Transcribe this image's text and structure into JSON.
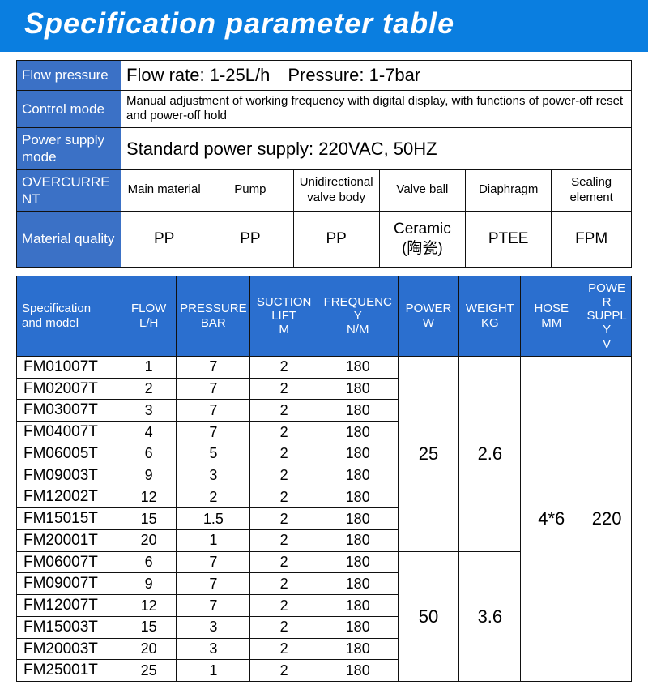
{
  "colors": {
    "header_blue": "#0a7ee0",
    "label_blue": "#3b71c6",
    "spec_header_blue": "#2b6fcf",
    "border": "#111111",
    "text": "#111111",
    "white": "#ffffff"
  },
  "typography": {
    "title_size": 36,
    "big_text_size": 22,
    "body_size": 17,
    "small_size": 15,
    "model_size": 19
  },
  "title": "Specification parameter table",
  "info": {
    "rows": [
      {
        "label": "Flow pressure",
        "value": "Flow rate: 1-25L/h Pressure: 1-7bar",
        "big": true
      },
      {
        "label": "Control mode",
        "value": "Manual adjustment of working frequency with digital display, with functions of power-off reset and power-off hold",
        "big": false
      },
      {
        "label": "Power supply mode",
        "value": "Standard power supply: 220VAC, 50HZ",
        "big": true
      }
    ],
    "overcurrent": {
      "label": "OVERCURRENT",
      "headers": [
        "Main material",
        "Pump",
        "Unidirectional valve body",
        "Valve ball",
        "Diaphragm",
        "Sealing element"
      ]
    },
    "material": {
      "label": "Material quality",
      "values": [
        "PP",
        "PP",
        "PP",
        "Ceramic\n(陶瓷)",
        "PTEE",
        "FPM"
      ]
    }
  },
  "col_widths_info": [
    "17%",
    "14%",
    "14%",
    "14%",
    "14%",
    "14%",
    "13%"
  ],
  "spec": {
    "headers": [
      {
        "line1": "Specification",
        "line2": "and model"
      },
      {
        "line1": "FLOW",
        "line2": "L/H"
      },
      {
        "line1": "PRESSURE",
        "line2": "BAR"
      },
      {
        "line1": "SUCTION",
        "line2": "LIFT",
        "line3": "M"
      },
      {
        "line1": "FREQUENCY",
        "line2": "N/M"
      },
      {
        "line1": "POWER",
        "line2": "W"
      },
      {
        "line1": "WEIGHT",
        "line2": "KG"
      },
      {
        "line1": "HOSE",
        "line2": "MM"
      },
      {
        "line1": "POWER",
        "line2": "SUPPLY",
        "line3": "V"
      }
    ],
    "col_widths": [
      "17%",
      "9%",
      "12%",
      "11%",
      "13%",
      "10%",
      "10%",
      "10%",
      "8%"
    ],
    "rows": [
      {
        "model": "FM01007T",
        "flow": "1",
        "pressure": "7",
        "suction": "2",
        "freq": "180"
      },
      {
        "model": "FM02007T",
        "flow": "2",
        "pressure": "7",
        "suction": "2",
        "freq": "180"
      },
      {
        "model": "FM03007T",
        "flow": "3",
        "pressure": "7",
        "suction": "2",
        "freq": "180"
      },
      {
        "model": "FM04007T",
        "flow": "4",
        "pressure": "7",
        "suction": "2",
        "freq": "180"
      },
      {
        "model": "FM06005T",
        "flow": "6",
        "pressure": "5",
        "suction": "2",
        "freq": "180"
      },
      {
        "model": "FM09003T",
        "flow": "9",
        "pressure": "3",
        "suction": "2",
        "freq": "180"
      },
      {
        "model": "FM12002T",
        "flow": "12",
        "pressure": "2",
        "suction": "2",
        "freq": "180"
      },
      {
        "model": "FM15015T",
        "flow": "15",
        "pressure": "1.5",
        "suction": "2",
        "freq": "180"
      },
      {
        "model": "FM20001T",
        "flow": "20",
        "pressure": "1",
        "suction": "2",
        "freq": "180"
      },
      {
        "model": "FM06007T",
        "flow": "6",
        "pressure": "7",
        "suction": "2",
        "freq": "180"
      },
      {
        "model": "FM09007T",
        "flow": "9",
        "pressure": "7",
        "suction": "2",
        "freq": "180"
      },
      {
        "model": "FM12007T",
        "flow": "12",
        "pressure": "7",
        "suction": "2",
        "freq": "180"
      },
      {
        "model": "FM15003T",
        "flow": "15",
        "pressure": "3",
        "suction": "2",
        "freq": "180"
      },
      {
        "model": "FM20003T",
        "flow": "20",
        "pressure": "3",
        "suction": "2",
        "freq": "180"
      },
      {
        "model": "FM25001T",
        "flow": "25",
        "pressure": "1",
        "suction": "2",
        "freq": "180"
      }
    ],
    "groups": [
      {
        "start": 0,
        "span": 9,
        "power": "25",
        "weight": "2.6",
        "hose": "4*6",
        "supply": "220"
      },
      {
        "start": 9,
        "span": 6,
        "power": "50",
        "weight": "3.6"
      }
    ],
    "outer_groups": [
      {
        "start": 0,
        "span": 15
      }
    ]
  }
}
